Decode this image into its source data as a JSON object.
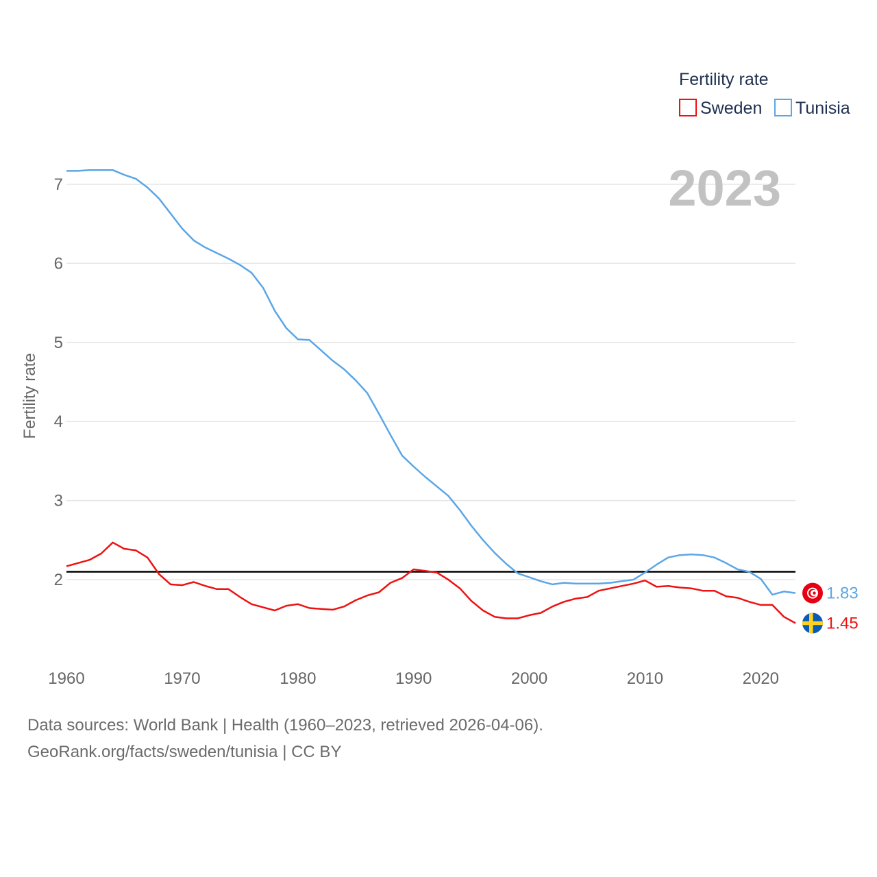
{
  "chart_data": {
    "type": "line",
    "title": "Fertility rate",
    "ylabel": "Fertility rate",
    "xlabel": "",
    "year_display": "2023",
    "xlim": [
      1960,
      2023
    ],
    "ylim": [
      1.0,
      7.6
    ],
    "x_ticks": [
      1960,
      1970,
      1980,
      1990,
      2000,
      2010,
      2020
    ],
    "y_ticks": [
      2,
      3,
      4,
      5,
      6,
      7
    ],
    "reference_line": 2.1,
    "x": [
      1960,
      1961,
      1962,
      1963,
      1964,
      1965,
      1966,
      1967,
      1968,
      1969,
      1970,
      1971,
      1972,
      1973,
      1974,
      1975,
      1976,
      1977,
      1978,
      1979,
      1980,
      1981,
      1982,
      1983,
      1984,
      1985,
      1986,
      1987,
      1988,
      1989,
      1990,
      1991,
      1992,
      1993,
      1994,
      1995,
      1996,
      1997,
      1998,
      1999,
      2000,
      2001,
      2002,
      2003,
      2004,
      2005,
      2006,
      2007,
      2008,
      2009,
      2010,
      2011,
      2012,
      2013,
      2014,
      2015,
      2016,
      2017,
      2018,
      2019,
      2020,
      2021,
      2022,
      2023
    ],
    "series": [
      {
        "name": "Sweden",
        "color": "#ee1111",
        "end_label": "1.45",
        "flag": "sweden-flag",
        "values": [
          2.17,
          2.21,
          2.25,
          2.33,
          2.47,
          2.39,
          2.37,
          2.28,
          2.07,
          1.94,
          1.93,
          1.97,
          1.92,
          1.88,
          1.88,
          1.78,
          1.69,
          1.65,
          1.61,
          1.67,
          1.69,
          1.64,
          1.63,
          1.62,
          1.66,
          1.74,
          1.8,
          1.84,
          1.96,
          2.02,
          2.13,
          2.11,
          2.09,
          2.0,
          1.89,
          1.73,
          1.61,
          1.53,
          1.51,
          1.51,
          1.55,
          1.58,
          1.66,
          1.72,
          1.76,
          1.78,
          1.86,
          1.89,
          1.92,
          1.95,
          1.99,
          1.91,
          1.92,
          1.9,
          1.89,
          1.86,
          1.86,
          1.79,
          1.77,
          1.72,
          1.68,
          1.68,
          1.53,
          1.45
        ]
      },
      {
        "name": "Tunisia",
        "color": "#5ba6e6",
        "end_label": "1.83",
        "flag": "tunisia-flag",
        "values": [
          7.17,
          7.17,
          7.18,
          7.18,
          7.18,
          7.12,
          7.07,
          6.96,
          6.82,
          6.63,
          6.44,
          6.29,
          6.2,
          6.13,
          6.06,
          5.98,
          5.88,
          5.69,
          5.4,
          5.18,
          5.04,
          5.03,
          4.9,
          4.77,
          4.66,
          4.52,
          4.36,
          4.1,
          3.83,
          3.57,
          3.43,
          3.3,
          3.18,
          3.06,
          2.88,
          2.68,
          2.5,
          2.34,
          2.2,
          2.08,
          2.03,
          1.98,
          1.94,
          1.96,
          1.95,
          1.95,
          1.95,
          1.96,
          1.98,
          2.0,
          2.09,
          2.19,
          2.28,
          2.31,
          2.32,
          2.31,
          2.28,
          2.21,
          2.13,
          2.1,
          2.01,
          1.81,
          1.85,
          1.83
        ]
      }
    ]
  },
  "legend": {
    "title": "Fertility rate",
    "items": [
      "Sweden",
      "Tunisia"
    ]
  },
  "footer": {
    "sources": "Data sources: World Bank | Health (1960–2023, retrieved 2026-04-06).",
    "credit": "GeoRank.org/facts/sweden/tunisia | CC BY"
  }
}
